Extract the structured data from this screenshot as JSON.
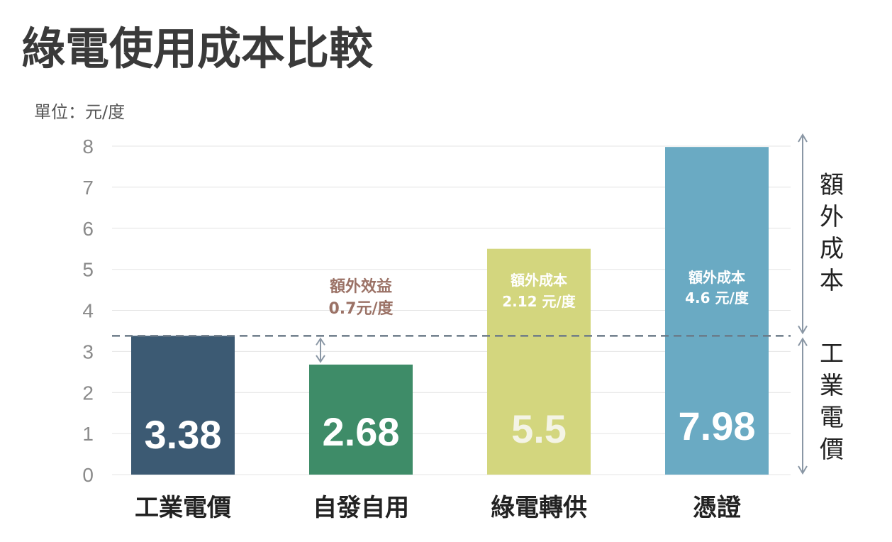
{
  "title": "綠電使用成本比較",
  "unit_label": "單位：元/度",
  "chart_data": {
    "type": "bar",
    "title": "綠電使用成本比較",
    "ylabel": "單位：元/度",
    "xlabel": "",
    "ylim": [
      0,
      8
    ],
    "yticks": [
      0,
      1,
      2,
      3,
      4,
      5,
      6,
      7,
      8
    ],
    "grid": true,
    "categories": [
      "工業電價",
      "自發自用",
      "綠電轉供",
      "憑證"
    ],
    "values": [
      3.38,
      2.68,
      5.5,
      7.98
    ],
    "value_labels": [
      "3.38",
      "2.68",
      "5.5",
      "7.98"
    ],
    "colors": [
      "#3c5a73",
      "#3e8c68",
      "#d3d67e",
      "#6aaac3"
    ],
    "reference_line": {
      "value": 3.38
    },
    "annotations": [
      {
        "category": "自發自用",
        "line1": "額外效益",
        "line2": "0.7元/度",
        "color": "#9b7266"
      },
      {
        "category": "綠電轉供",
        "line1": "額外成本",
        "line2": "2.12 元/度",
        "color": "#ffffff"
      },
      {
        "category": "憑證",
        "line1": "額外成本",
        "line2": "4.6 元/度",
        "color": "#ffffff"
      }
    ],
    "side_labels": {
      "upper": "額外成本",
      "lower": "工業電價"
    }
  }
}
